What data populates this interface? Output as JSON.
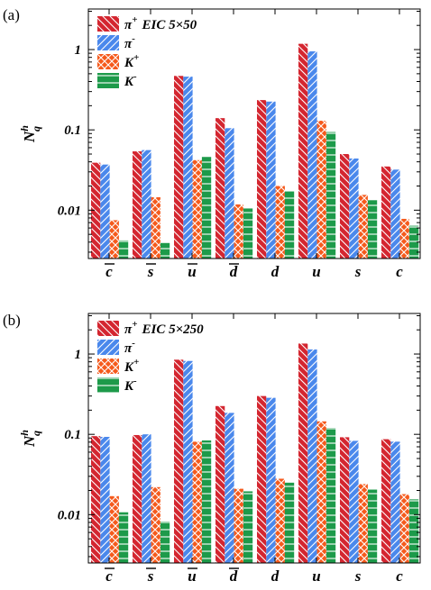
{
  "chart_data": [
    {
      "type": "bar",
      "panel_label": "(a)",
      "ylabel": "N",
      "ylabel_sup": "h",
      "ylabel_sub": "q",
      "yscale": "log",
      "ylim": [
        0.0025,
        3.2
      ],
      "yticks": [
        {
          "value": 0.01,
          "label": "0.01"
        },
        {
          "value": 0.1,
          "label": "0.1"
        },
        {
          "value": 1,
          "label": "1"
        }
      ],
      "categories": [
        {
          "name": "c",
          "bar": true
        },
        {
          "name": "s",
          "bar": true
        },
        {
          "name": "u",
          "bar": true
        },
        {
          "name": "d",
          "bar": true
        },
        {
          "name": "d",
          "bar": false
        },
        {
          "name": "u",
          "bar": false
        },
        {
          "name": "s",
          "bar": false
        },
        {
          "name": "c",
          "bar": false
        }
      ],
      "legend_title": "EIC 5×50",
      "legend_position": "top-left",
      "series": [
        {
          "name": "π",
          "sup": "+",
          "values": [
            0.039,
            0.054,
            0.47,
            0.14,
            0.235,
            1.18,
            0.05,
            0.035
          ]
        },
        {
          "name": "π",
          "sup": "-",
          "values": [
            0.037,
            0.056,
            0.46,
            0.105,
            0.225,
            0.95,
            0.044,
            0.032
          ]
        },
        {
          "name": "K",
          "sup": "+",
          "values": [
            0.0075,
            0.0145,
            0.042,
            0.0118,
            0.02,
            0.13,
            0.0155,
            0.0078
          ]
        },
        {
          "name": "K",
          "sup": "-",
          "values": [
            0.0042,
            0.0039,
            0.046,
            0.0105,
            0.0175,
            0.094,
            0.0133,
            0.0064
          ]
        }
      ]
    },
    {
      "type": "bar",
      "panel_label": "(b)",
      "ylabel": "N",
      "ylabel_sup": "h",
      "ylabel_sub": "q",
      "yscale": "log",
      "ylim": [
        0.0025,
        3.2
      ],
      "yticks": [
        {
          "value": 0.01,
          "label": "0.01"
        },
        {
          "value": 0.1,
          "label": "0.1"
        },
        {
          "value": 1,
          "label": "1"
        }
      ],
      "categories": [
        {
          "name": "c",
          "bar": true
        },
        {
          "name": "s",
          "bar": true
        },
        {
          "name": "u",
          "bar": true
        },
        {
          "name": "d",
          "bar": true
        },
        {
          "name": "d",
          "bar": false
        },
        {
          "name": "u",
          "bar": false
        },
        {
          "name": "s",
          "bar": false
        },
        {
          "name": "c",
          "bar": false
        }
      ],
      "legend_title": "EIC 5×250",
      "legend_position": "top-left",
      "series": [
        {
          "name": "π",
          "sup": "+",
          "values": [
            0.095,
            0.098,
            0.85,
            0.225,
            0.3,
            1.35,
            0.092,
            0.087
          ]
        },
        {
          "name": "π",
          "sup": "-",
          "values": [
            0.093,
            0.1,
            0.82,
            0.185,
            0.285,
            1.14,
            0.083,
            0.081
          ]
        },
        {
          "name": "K",
          "sup": "+",
          "values": [
            0.017,
            0.022,
            0.081,
            0.021,
            0.028,
            0.145,
            0.024,
            0.018
          ]
        },
        {
          "name": "K",
          "sup": "-",
          "values": [
            0.0107,
            0.0082,
            0.084,
            0.0195,
            0.025,
            0.12,
            0.0205,
            0.0155
          ]
        }
      ]
    }
  ],
  "colors": {
    "pi_plus": "#d42630",
    "pi_minus": "#4a88ec",
    "k_plus": "#f55a1c",
    "k_minus": "#1d9a4a",
    "stroke": "#ffffff"
  },
  "hatches": [
    "hatch-diag-back",
    "hatch-diag-fwd",
    "hatch-cross",
    "hatch-horizontal"
  ]
}
